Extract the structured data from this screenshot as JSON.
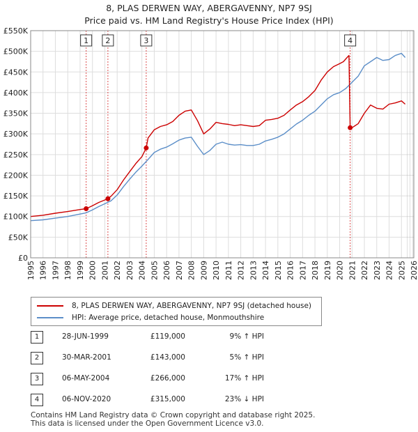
{
  "title_line1": "8, PLAS DERWEN WAY, ABERGAVENNY, NP7 9SJ",
  "title_line2": "Price paid vs. HM Land Registry's House Price Index (HPI)",
  "chart_data": {
    "type": "line",
    "ylim": [
      0,
      550000
    ],
    "xlim": [
      1995,
      2026
    ],
    "y_ticks": [
      0,
      50000,
      100000,
      150000,
      200000,
      250000,
      300000,
      350000,
      400000,
      450000,
      500000,
      550000
    ],
    "y_tick_labels": [
      "£0",
      "£50K",
      "£100K",
      "£150K",
      "£200K",
      "£250K",
      "£300K",
      "£350K",
      "£400K",
      "£450K",
      "£500K",
      "£550K"
    ],
    "x_tick_labels": [
      "1995",
      "1996",
      "1997",
      "1998",
      "1999",
      "2000",
      "2001",
      "2002",
      "2003",
      "2004",
      "2005",
      "2006",
      "2007",
      "2008",
      "2009",
      "2010",
      "2011",
      "2012",
      "2013",
      "2014",
      "2015",
      "2016",
      "2017",
      "2018",
      "2019",
      "2020",
      "2021",
      "2022",
      "2023",
      "2024",
      "2025",
      "2026"
    ],
    "grid": true,
    "series": [
      {
        "name": "8, PLAS DERWEN WAY, ABERGAVENNY, NP7 9SJ (detached house)",
        "color": "#cc0000",
        "x": [
          1995.0,
          1996.0,
          1997.0,
          1998.0,
          1999.0,
          1999.49,
          2000.0,
          2000.5,
          2001.0,
          2001.25,
          2001.5,
          2002.0,
          2002.5,
          2003.0,
          2003.5,
          2004.0,
          2004.35,
          2004.5,
          2005.0,
          2005.5,
          2006.0,
          2006.5,
          2007.0,
          2007.5,
          2008.0,
          2008.5,
          2009.0,
          2009.5,
          2010.0,
          2010.5,
          2011.0,
          2011.5,
          2012.0,
          2012.5,
          2013.0,
          2013.5,
          2014.0,
          2014.5,
          2015.0,
          2015.5,
          2016.0,
          2016.5,
          2017.0,
          2017.5,
          2018.0,
          2018.5,
          2019.0,
          2019.5,
          2020.0,
          2020.3,
          2020.6,
          2020.75,
          2020.85,
          2021.0,
          2021.5,
          2022.0,
          2022.5,
          2023.0,
          2023.5,
          2024.0,
          2024.5,
          2025.0,
          2025.3
        ],
        "values": [
          100000,
          103000,
          108000,
          112000,
          117000,
          119000,
          126000,
          134000,
          140000,
          143000,
          149000,
          165000,
          188000,
          208000,
          228000,
          245000,
          266000,
          290000,
          310000,
          318000,
          322000,
          330000,
          345000,
          355000,
          358000,
          332000,
          300000,
          312000,
          328000,
          325000,
          323000,
          320000,
          322000,
          320000,
          318000,
          320000,
          333000,
          335000,
          338000,
          345000,
          358000,
          370000,
          378000,
          390000,
          405000,
          430000,
          450000,
          463000,
          470000,
          475000,
          485000,
          490000,
          315000,
          315000,
          325000,
          350000,
          370000,
          362000,
          360000,
          372000,
          375000,
          380000,
          372000
        ]
      },
      {
        "name": "HPI: Average price, detached house, Monmouthshire",
        "color": "#5b8ec8",
        "x": [
          1995.0,
          1996.0,
          1997.0,
          1998.0,
          1999.0,
          1999.5,
          2000.0,
          2000.5,
          2001.0,
          2001.5,
          2002.0,
          2002.5,
          2003.0,
          2003.5,
          2004.0,
          2004.5,
          2005.0,
          2005.5,
          2006.0,
          2006.5,
          2007.0,
          2007.5,
          2008.0,
          2008.5,
          2009.0,
          2009.5,
          2010.0,
          2010.5,
          2011.0,
          2011.5,
          2012.0,
          2012.5,
          2013.0,
          2013.5,
          2014.0,
          2014.5,
          2015.0,
          2015.5,
          2016.0,
          2016.5,
          2017.0,
          2017.5,
          2018.0,
          2018.5,
          2019.0,
          2019.5,
          2020.0,
          2020.5,
          2021.0,
          2021.5,
          2022.0,
          2022.5,
          2023.0,
          2023.5,
          2024.0,
          2024.5,
          2025.0,
          2025.3
        ],
        "values": [
          90000,
          92000,
          96000,
          100000,
          106000,
          109000,
          116000,
          124000,
          131000,
          138000,
          152000,
          172000,
          190000,
          207000,
          222000,
          238000,
          255000,
          263000,
          268000,
          276000,
          285000,
          290000,
          292000,
          270000,
          250000,
          260000,
          275000,
          280000,
          275000,
          273000,
          274000,
          272000,
          272000,
          275000,
          283000,
          287000,
          292000,
          300000,
          312000,
          324000,
          333000,
          345000,
          355000,
          370000,
          385000,
          395000,
          400000,
          410000,
          425000,
          440000,
          465000,
          475000,
          485000,
          478000,
          480000,
          490000,
          495000,
          485000
        ]
      }
    ],
    "sales": [
      {
        "label": "1",
        "x": 1999.49,
        "value": 119000
      },
      {
        "label": "2",
        "x": 2001.25,
        "value": 143000
      },
      {
        "label": "3",
        "x": 2004.35,
        "value": 266000
      },
      {
        "label": "4",
        "x": 2020.85,
        "value": 315000
      }
    ]
  },
  "legend": {
    "property_label": "8, PLAS DERWEN WAY, ABERGAVENNY, NP7 9SJ (detached house)",
    "hpi_label": "HPI: Average price, detached house, Monmouthshire"
  },
  "transactions": [
    {
      "num": "1",
      "date": "28-JUN-1999",
      "price": "£119,000",
      "hpi": "9% ↑ HPI"
    },
    {
      "num": "2",
      "date": "30-MAR-2001",
      "price": "£143,000",
      "hpi": "5% ↑ HPI"
    },
    {
      "num": "3",
      "date": "06-MAY-2004",
      "price": "£266,000",
      "hpi": "17% ↑ HPI"
    },
    {
      "num": "4",
      "date": "06-NOV-2020",
      "price": "£315,000",
      "hpi": "23% ↓ HPI"
    }
  ],
  "footer": {
    "line1": "Contains HM Land Registry data © Crown copyright and database right 2025.",
    "line2": "This data is licensed under the Open Government Licence v3.0."
  },
  "colors": {
    "property": "#cc0000",
    "hpi": "#5b8ec8",
    "grid": "#dddddd",
    "sale_line": "#cc0000"
  }
}
